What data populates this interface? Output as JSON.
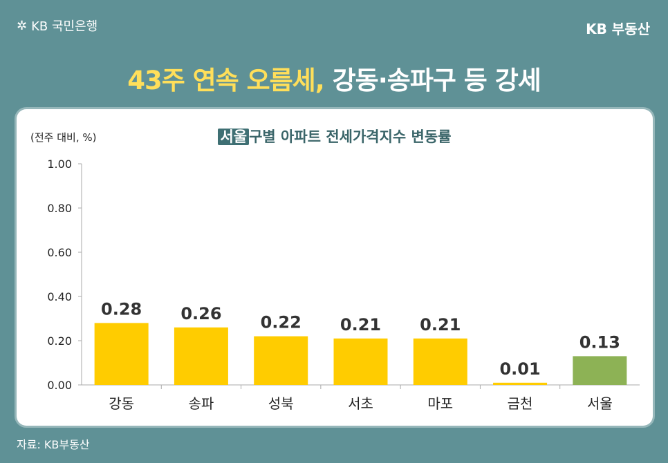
{
  "header": {
    "logo_text": "KB 국민은행",
    "brand": "KB 부동산"
  },
  "headline": {
    "highlight": "43주 연속 오름세,",
    "rest": " 강동·송파구 등 강세"
  },
  "chart_title": {
    "tag": "서울",
    "text": "구별 아파트 전세가격지수 변동률"
  },
  "source": "자료: KB부동산",
  "colors": {
    "background": "#5f9196",
    "bar": "#ffcc00",
    "bar_highlight": "#8db255"
  },
  "chart_data": {
    "type": "bar",
    "title": "서울 구별 아파트 전세가격지수 변동률",
    "ylabel": "(전주 대비, %)",
    "xlabel": "",
    "categories": [
      "강동",
      "송파",
      "성북",
      "서초",
      "마포",
      "금천",
      "서울"
    ],
    "values": [
      0.28,
      0.26,
      0.22,
      0.21,
      0.21,
      0.01,
      0.13
    ],
    "value_labels": [
      "0.28",
      "0.26",
      "0.22",
      "0.21",
      "0.21",
      "0.01",
      "0.13"
    ],
    "ylim": [
      0,
      1.0
    ],
    "yticks": [
      "0.00",
      "0.20",
      "0.40",
      "0.60",
      "0.80",
      "1.00"
    ],
    "highlight_category": "서울",
    "grid": false
  }
}
